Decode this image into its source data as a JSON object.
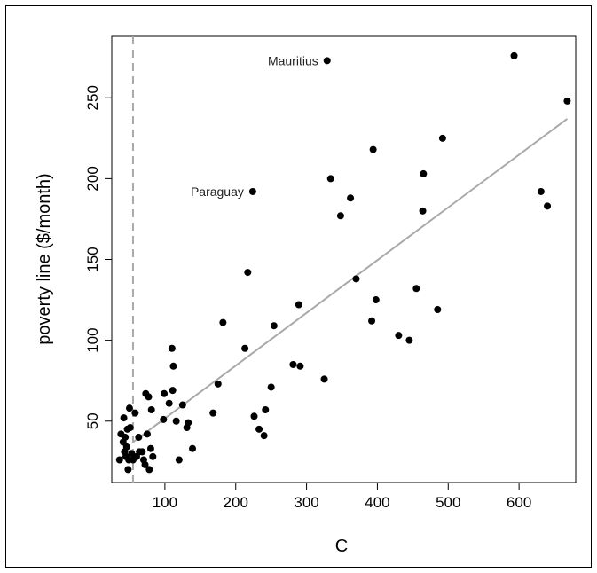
{
  "chart_data": {
    "type": "scatter",
    "xlabel": "C",
    "ylabel": "poverty line ($/month)",
    "xlim": [
      25,
      680
    ],
    "ylim": [
      12,
      288
    ],
    "xticks": [
      100,
      200,
      300,
      400,
      500,
      600
    ],
    "yticks": [
      50,
      100,
      150,
      200,
      250
    ],
    "grid": false,
    "colors": {
      "points": "#000000",
      "fit_line": "#a9a9a9",
      "ref_line": "#a9a9a9"
    },
    "reference_line": {
      "orientation": "vertical",
      "x": 55,
      "style": "dashed"
    },
    "fit_line": {
      "x": [
        55,
        668
      ],
      "y": [
        37,
        237
      ]
    },
    "annotations": [
      {
        "label": "Mauritius",
        "x": 329,
        "y": 273
      },
      {
        "label": "Paraguay",
        "x": 224,
        "y": 192
      }
    ],
    "points": [
      {
        "x": 36,
        "y": 26
      },
      {
        "x": 38,
        "y": 42
      },
      {
        "x": 41,
        "y": 37
      },
      {
        "x": 42,
        "y": 52
      },
      {
        "x": 43,
        "y": 31
      },
      {
        "x": 44,
        "y": 40
      },
      {
        "x": 45,
        "y": 28
      },
      {
        "x": 46,
        "y": 34
      },
      {
        "x": 47,
        "y": 45
      },
      {
        "x": 48,
        "y": 20
      },
      {
        "x": 49,
        "y": 26
      },
      {
        "x": 50,
        "y": 58
      },
      {
        "x": 51,
        "y": 46
      },
      {
        "x": 53,
        "y": 30
      },
      {
        "x": 55,
        "y": 26
      },
      {
        "x": 58,
        "y": 55
      },
      {
        "x": 60,
        "y": 28
      },
      {
        "x": 63,
        "y": 40
      },
      {
        "x": 64,
        "y": 31
      },
      {
        "x": 68,
        "y": 31
      },
      {
        "x": 70,
        "y": 26
      },
      {
        "x": 72,
        "y": 23
      },
      {
        "x": 73,
        "y": 67
      },
      {
        "x": 75,
        "y": 42
      },
      {
        "x": 77,
        "y": 65
      },
      {
        "x": 78,
        "y": 20
      },
      {
        "x": 80,
        "y": 33
      },
      {
        "x": 81,
        "y": 57
      },
      {
        "x": 83,
        "y": 28
      },
      {
        "x": 98,
        "y": 51
      },
      {
        "x": 99,
        "y": 67
      },
      {
        "x": 106,
        "y": 61
      },
      {
        "x": 110,
        "y": 95
      },
      {
        "x": 111,
        "y": 69
      },
      {
        "x": 112,
        "y": 84
      },
      {
        "x": 116,
        "y": 50
      },
      {
        "x": 120,
        "y": 26
      },
      {
        "x": 125,
        "y": 60
      },
      {
        "x": 131,
        "y": 46
      },
      {
        "x": 133,
        "y": 49
      },
      {
        "x": 139,
        "y": 33
      },
      {
        "x": 168,
        "y": 55
      },
      {
        "x": 175,
        "y": 73
      },
      {
        "x": 182,
        "y": 111
      },
      {
        "x": 213,
        "y": 95
      },
      {
        "x": 217,
        "y": 142
      },
      {
        "x": 224,
        "y": 192
      },
      {
        "x": 226,
        "y": 53
      },
      {
        "x": 233,
        "y": 45
      },
      {
        "x": 240,
        "y": 41
      },
      {
        "x": 242,
        "y": 57
      },
      {
        "x": 250,
        "y": 71
      },
      {
        "x": 254,
        "y": 109
      },
      {
        "x": 281,
        "y": 85
      },
      {
        "x": 289,
        "y": 122
      },
      {
        "x": 291,
        "y": 84
      },
      {
        "x": 325,
        "y": 76
      },
      {
        "x": 329,
        "y": 273
      },
      {
        "x": 334,
        "y": 200
      },
      {
        "x": 348,
        "y": 177
      },
      {
        "x": 362,
        "y": 188
      },
      {
        "x": 370,
        "y": 138
      },
      {
        "x": 392,
        "y": 112
      },
      {
        "x": 394,
        "y": 218
      },
      {
        "x": 398,
        "y": 125
      },
      {
        "x": 430,
        "y": 103
      },
      {
        "x": 445,
        "y": 100
      },
      {
        "x": 455,
        "y": 132
      },
      {
        "x": 464,
        "y": 180
      },
      {
        "x": 465,
        "y": 203
      },
      {
        "x": 485,
        "y": 119
      },
      {
        "x": 492,
        "y": 225
      },
      {
        "x": 593,
        "y": 276
      },
      {
        "x": 631,
        "y": 192
      },
      {
        "x": 640,
        "y": 183
      },
      {
        "x": 668,
        "y": 248
      }
    ]
  }
}
